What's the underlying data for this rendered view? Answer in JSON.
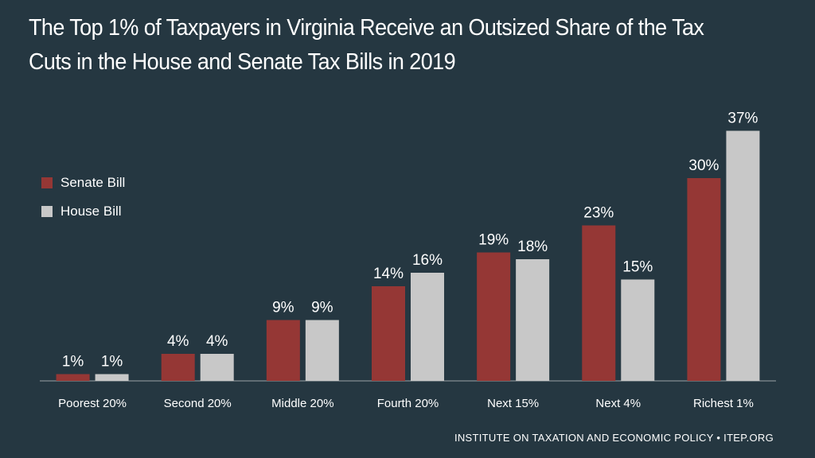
{
  "title": "The Top 1% of Taxpayers in Virginia Receive an Outsized Share of the Tax Cuts in the House and Senate Tax Bills in 2019",
  "source": "INSTITUTE ON TAXATION AND ECONOMIC POLICY • ITEP.ORG",
  "colors": {
    "background": "#253741",
    "senate": "#953735",
    "house": "#c8c8c8",
    "axis": "#9aa3a8"
  },
  "chart_data": {
    "type": "bar",
    "title": "The Top 1% of Taxpayers in Virginia Receive an Outsized Share of the Tax Cuts in the House and Senate Tax Bills in 2019",
    "xlabel": "",
    "ylabel": "",
    "ylim": [
      0,
      40
    ],
    "grid": false,
    "legend_position": "left",
    "categories": [
      "Poorest 20%",
      "Second 20%",
      "Middle 20%",
      "Fourth 20%",
      "Next 15%",
      "Next 4%",
      "Richest 1%"
    ],
    "series": [
      {
        "name": "Senate Bill",
        "color": "#953735",
        "values": [
          1,
          4,
          9,
          14,
          19,
          23,
          30
        ],
        "labels": [
          "1%",
          "4%",
          "9%",
          "14%",
          "19%",
          "23%",
          "30%"
        ]
      },
      {
        "name": "House Bill",
        "color": "#c8c8c8",
        "values": [
          1,
          4,
          9,
          16,
          18,
          15,
          37
        ],
        "labels": [
          "1%",
          "4%",
          "9%",
          "16%",
          "18%",
          "15%",
          "37%"
        ]
      }
    ]
  }
}
